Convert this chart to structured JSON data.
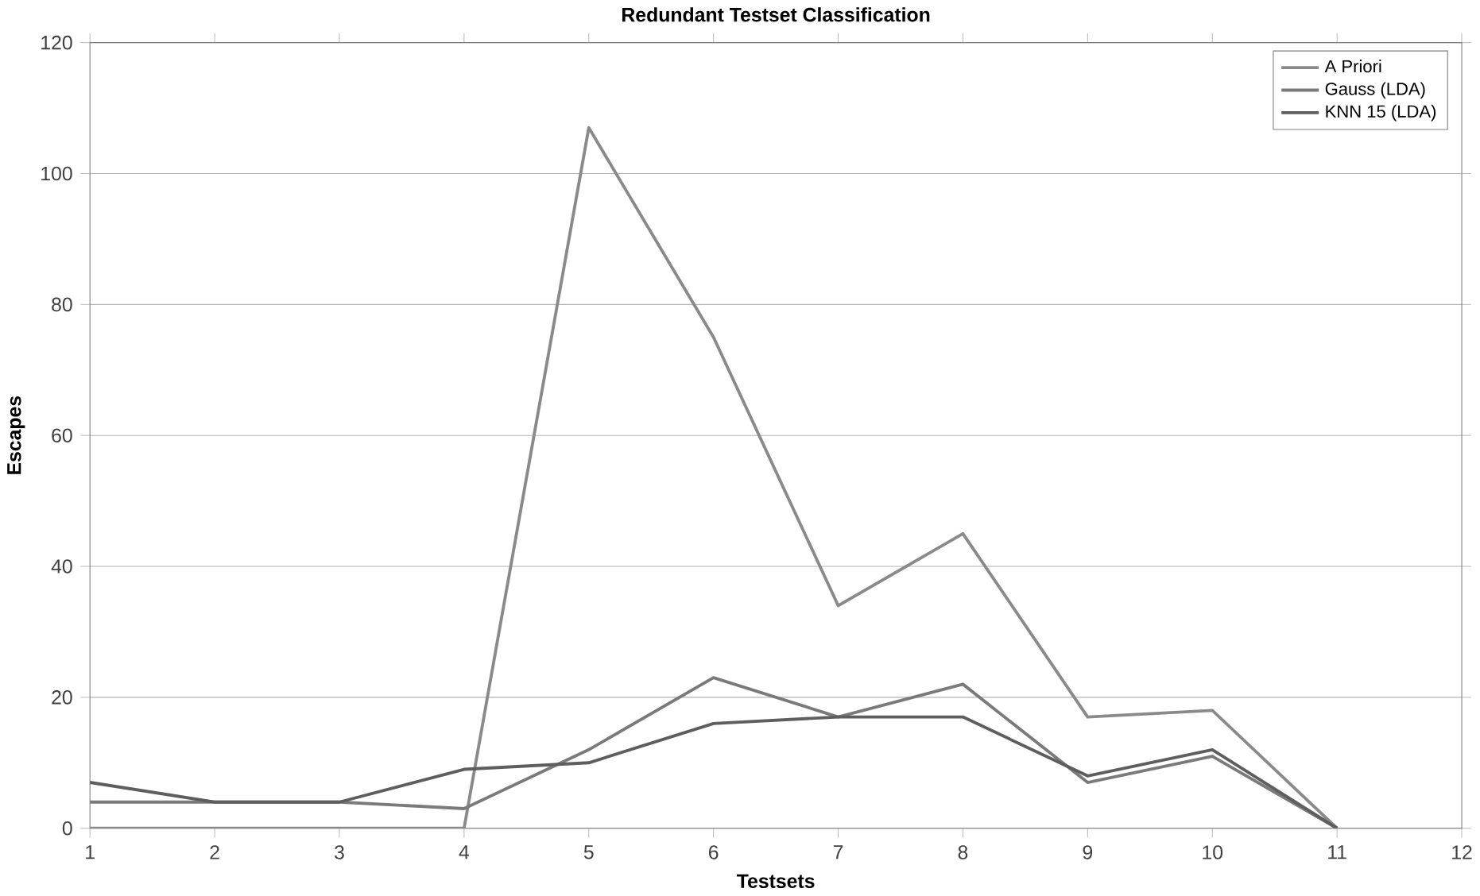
{
  "chart_data": {
    "type": "line",
    "title": "Redundant Testset Classification",
    "xlabel": "Testsets",
    "ylabel": "Escapes",
    "categories": [
      "1",
      "2",
      "3",
      "4",
      "5",
      "6",
      "7",
      "8",
      "9",
      "10",
      "11",
      "12"
    ],
    "series": [
      {
        "name": "A Priori",
        "color": "#8a8a8a",
        "values": [
          0,
          0,
          0,
          0,
          107,
          75,
          34,
          45,
          17,
          18,
          0,
          null
        ]
      },
      {
        "name": "Gauss (LDA)",
        "color": "#7a7a7a",
        "values": [
          4,
          4,
          4,
          3,
          12,
          23,
          17,
          22,
          7,
          11,
          0,
          null
        ]
      },
      {
        "name": "KNN 15 (LDA)",
        "color": "#5e5e5e",
        "values": [
          7,
          4,
          4,
          9,
          10,
          16,
          17,
          17,
          8,
          12,
          0,
          null
        ]
      }
    ],
    "ylim": [
      0,
      120
    ],
    "yticks": [
      0,
      20,
      40,
      60,
      80,
      100,
      120
    ],
    "grid": "y",
    "legend": "top right",
    "marker": "none",
    "line_style": "solid"
  }
}
